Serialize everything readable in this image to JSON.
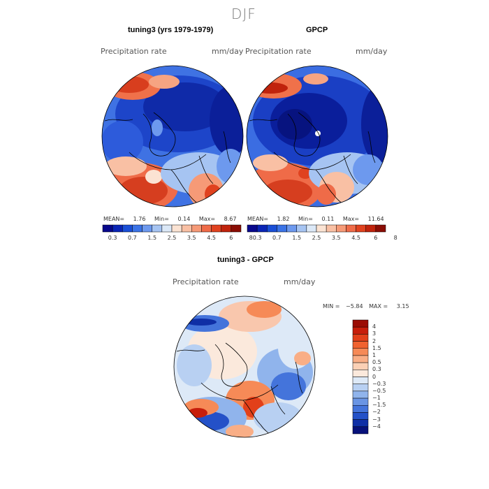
{
  "figure": {
    "title": "DJF",
    "maps": [
      {
        "title": "tuning3 (yrs 1979-1979)",
        "variable": "Precipitation rate",
        "units": "mm/day",
        "mean_label": "MEAN=",
        "mean": "1.76",
        "min_label": "Min=",
        "min": "0.14",
        "max_label": "Max=",
        "max": "8.67"
      },
      {
        "title": "GPCP",
        "variable": "Precipitation rate",
        "units": "mm/day",
        "mean_label": "MEAN=",
        "mean": "1.82",
        "min_label": "Min=",
        "min": "0.11",
        "max_label": "Max=",
        "max": "11.64"
      }
    ],
    "precip_colorbar": {
      "ticks": [
        "0.3",
        "0.7",
        "1.5",
        "2.5",
        "3.5",
        "4.5",
        "6",
        "8"
      ],
      "colors": [
        "#08088c",
        "#0a25b5",
        "#1a4fd6",
        "#3b73e6",
        "#6d99ee",
        "#a6c4f2",
        "#dbe8f7",
        "#fbe3d3",
        "#f9c0a4",
        "#f69a77",
        "#ef6b48",
        "#e0421f",
        "#c0230c",
        "#8a0d05"
      ]
    },
    "difference": {
      "title": "tuning3 - GPCP",
      "variable": "Precipitation rate",
      "units": "mm/day",
      "min_label": "MIN =",
      "min": "−5.84",
      "max_label": "MAX =",
      "max": "3.15",
      "colorbar_labels": [
        "4",
        "3",
        "2",
        "1.5",
        "1",
        "0.5",
        "0.3",
        "0",
        "−0.3",
        "−0.5",
        "−1",
        "−1.5",
        "−2",
        "−3",
        "−4"
      ],
      "colorbar_colors": [
        "#9b0d05",
        "#c71e0b",
        "#e2401a",
        "#f0622f",
        "#f68a57",
        "#f9ae86",
        "#fbd0b5",
        "#fbe9dc",
        "#dde9f7",
        "#b8d0f2",
        "#90b4ec",
        "#6a95e4",
        "#4474db",
        "#2451c8",
        "#0f2fa6",
        "#07117a"
      ]
    }
  }
}
